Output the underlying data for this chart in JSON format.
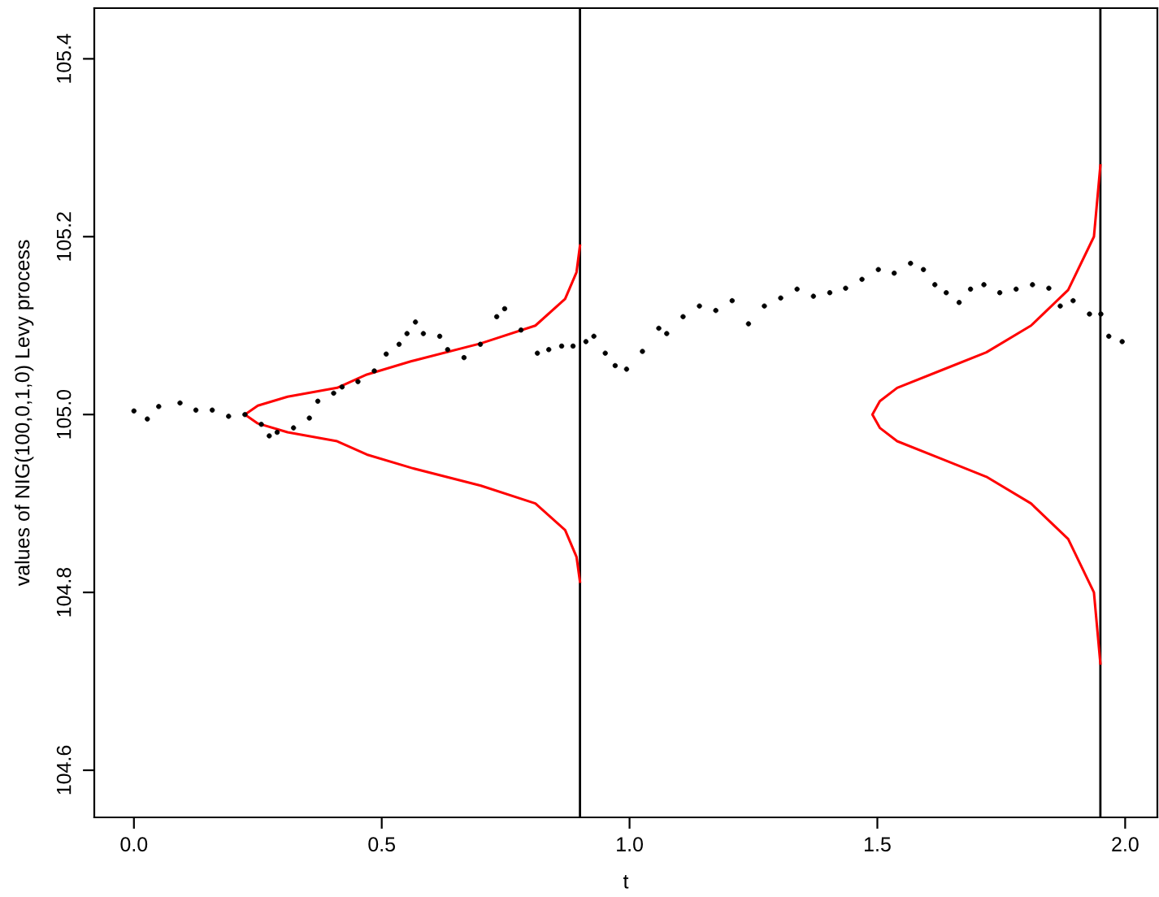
{
  "chart_data": {
    "type": "scatter",
    "xlabel": "t",
    "ylabel": "values of NIG(100,0,1,0) Levy process",
    "xlim": [
      -0.08,
      2.065
    ],
    "ylim": [
      104.547,
      105.457
    ],
    "xticks": [
      {
        "value": 0,
        "label": "0.0"
      },
      0.5,
      {
        "value": 1,
        "label": "1.0"
      },
      1.5,
      {
        "value": 2,
        "label": "2.0"
      }
    ],
    "yticks": [
      104.6,
      104.8,
      {
        "value": 105,
        "label": "105.0"
      },
      105.2,
      105.4
    ],
    "grid": false,
    "legend": false,
    "marker": "circle",
    "ref_lines": [
      {
        "axis": "x",
        "value": 0.9,
        "color": "#000000"
      },
      {
        "axis": "x",
        "value": 1.95,
        "color": "#000000"
      }
    ],
    "series": [
      {
        "color": "#000000",
        "x": [
          0.0,
          0.027,
          0.05,
          0.093,
          0.125,
          0.158,
          0.191,
          0.224,
          0.257,
          0.273,
          0.289,
          0.322,
          0.354,
          0.371,
          0.403,
          0.42,
          0.452,
          0.485,
          0.509,
          0.535,
          0.551,
          0.568,
          0.584,
          0.617,
          0.633,
          0.666,
          0.699,
          0.732,
          0.748,
          0.781,
          0.814,
          0.837,
          0.863,
          0.886,
          0.912,
          0.928,
          0.951,
          0.971,
          0.994,
          1.026,
          1.059,
          1.075,
          1.108,
          1.141,
          1.174,
          1.207,
          1.24,
          1.272,
          1.305,
          1.338,
          1.371,
          1.404,
          1.436,
          1.469,
          1.502,
          1.534,
          1.567,
          1.593,
          1.616,
          1.639,
          1.665,
          1.688,
          1.715,
          1.747,
          1.78,
          1.813,
          1.846,
          1.869,
          1.895,
          1.928,
          1.951,
          1.967,
          1.994
        ],
        "values": [
          105.004,
          104.995,
          105.009,
          105.013,
          105.005,
          105.005,
          104.998,
          105.0,
          104.989,
          104.976,
          104.98,
          104.985,
          104.996,
          105.015,
          105.024,
          105.031,
          105.037,
          105.049,
          105.068,
          105.079,
          105.091,
          105.104,
          105.091,
          105.088,
          105.073,
          105.064,
          105.079,
          105.11,
          105.119,
          105.095,
          105.069,
          105.073,
          105.077,
          105.077,
          105.082,
          105.088,
          105.069,
          105.055,
          105.051,
          105.071,
          105.097,
          105.091,
          105.11,
          105.122,
          105.117,
          105.128,
          105.102,
          105.122,
          105.131,
          105.141,
          105.133,
          105.137,
          105.142,
          105.152,
          105.163,
          105.159,
          105.17,
          105.163,
          105.146,
          105.137,
          105.126,
          105.141,
          105.146,
          105.137,
          105.141,
          105.146,
          105.142,
          105.122,
          105.128,
          105.113,
          105.113,
          105.088,
          105.082
        ]
      },
      {
        "type": "line",
        "color": "#ff0000",
        "marker": "none",
        "x": [
          0.9,
          0.893,
          0.87,
          0.81,
          0.7,
          0.56,
          0.47,
          0.41,
          0.31,
          0.25,
          0.224,
          0.25,
          0.31,
          0.41,
          0.47,
          0.56,
          0.7,
          0.81,
          0.87,
          0.893,
          0.9
        ],
        "values": [
          104.812,
          104.84,
          104.87,
          104.9,
          104.92,
          104.94,
          104.955,
          104.97,
          104.98,
          104.99,
          105.0,
          105.01,
          105.02,
          105.03,
          105.045,
          105.06,
          105.08,
          105.1,
          105.13,
          105.16,
          105.19
        ]
      },
      {
        "type": "line",
        "color": "#ff0000",
        "marker": "none",
        "x": [
          1.95,
          1.937,
          1.885,
          1.81,
          1.72,
          1.63,
          1.54,
          1.505,
          1.49,
          1.505,
          1.54,
          1.63,
          1.72,
          1.81,
          1.885,
          1.937,
          1.95
        ],
        "values": [
          104.72,
          104.8,
          104.86,
          104.9,
          104.93,
          104.95,
          104.97,
          104.985,
          105.0,
          105.015,
          105.03,
          105.05,
          105.07,
          105.1,
          105.14,
          105.2,
          105.28
        ]
      }
    ]
  }
}
